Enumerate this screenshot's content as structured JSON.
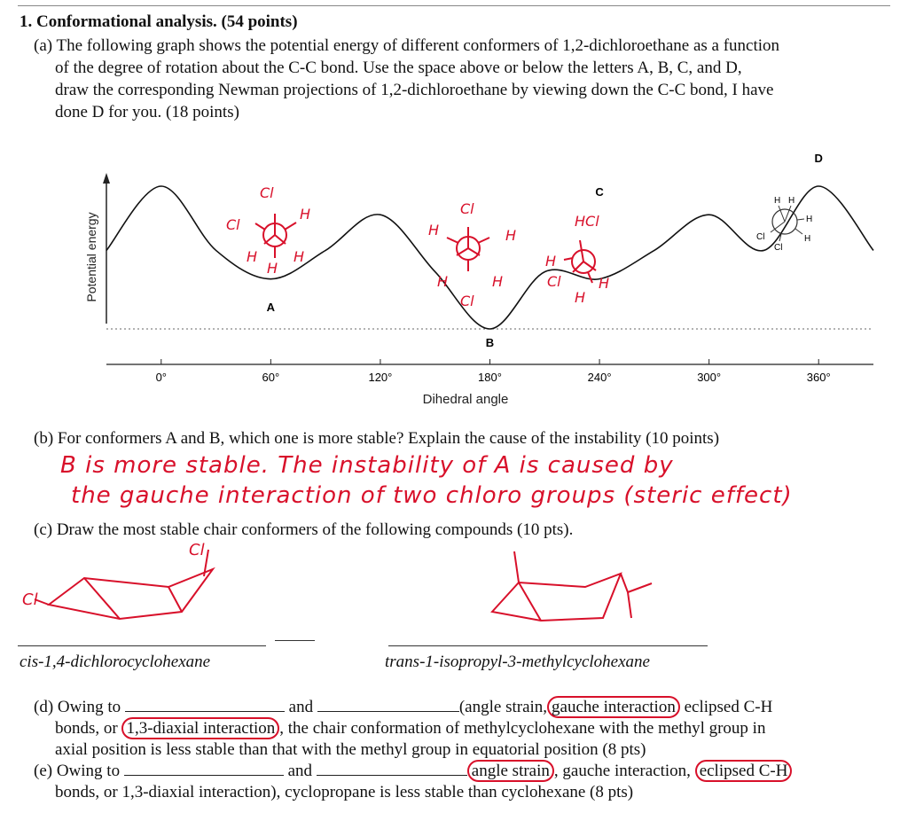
{
  "q1": {
    "title": "1. Conformational analysis. (54 points)",
    "a_lines": [
      "(a) The following graph shows the potential energy of different conformers of 1,2-dichloroethane as a function",
      "of the degree of rotation about the C-C bond. Use the space above or below the letters A, B, C, and D,",
      "draw the corresponding Newman projections of 1,2-dichloroethane by viewing down the C-C bond, I have",
      "done D for you. (18 points)"
    ],
    "b_question": "(b) For conformers A and B, which one is more stable? Explain the cause of the instability (10 points)",
    "b_answer_line1": "B is more stable.  The instability of A is caused by",
    "b_answer_line2": "the gauche interaction of two chloro groups (steric effect)",
    "c_question": "(c) Draw the most stable chair conformers of the following compounds (10 pts).",
    "c_label_left": "cis-1,4-dichlorocyclohexane",
    "c_label_right": "trans-1-isopropyl-3-methylcyclohexane",
    "c_hand_cl_top": "Cl",
    "c_hand_cl_left": "Cl",
    "d_prefix": "(d) Owing to",
    "d_and": "and",
    "d_options_open": "(angle strain,",
    "d_opt_gauche": "gauche interaction",
    "d_opt_eclipsed": " eclipsed C-H",
    "d_line2_pre": "bonds, or",
    "d_opt_diaxial": "1,3-diaxial interaction",
    "d_line2_post": ", the chair conformation of methylcyclohexane with the methyl group in",
    "d_line3": "axial position is less stable than that with the methyl group in equatorial position (8 pts)",
    "e_prefix": "(e) Owing to",
    "e_and": "and",
    "e_opt_angle": "angle strain",
    "e_mid": ", gauche interaction, ",
    "e_opt_eclipsed": "eclipsed C-H",
    "e_line2": "bonds, or 1,3-diaxial interaction), cyclopropane is less stable than cyclohexane (8 pts)"
  },
  "chart_data": {
    "type": "line",
    "xlabel": "Dihedral angle",
    "ylabel": "Potential energy",
    "x_ticks": [
      "0°",
      "60°",
      "120°",
      "180°",
      "240°",
      "300°",
      "360°"
    ],
    "x_tick_values": [
      0,
      60,
      120,
      180,
      240,
      300,
      360
    ],
    "xlim": [
      -30,
      390
    ],
    "curve_note": "relative energy vs dihedral angle (qualitative)",
    "curve": {
      "x": [
        -30,
        0,
        30,
        60,
        90,
        120,
        150,
        180,
        210,
        240,
        270,
        300,
        330,
        360,
        390
      ],
      "y": [
        0.55,
        1.0,
        0.55,
        0.35,
        0.55,
        0.8,
        0.4,
        0.0,
        0.4,
        0.35,
        0.55,
        0.8,
        0.55,
        1.0,
        0.55
      ]
    },
    "point_labels": [
      {
        "label": "A",
        "x": 60
      },
      {
        "label": "B",
        "x": 180
      },
      {
        "label": "C",
        "x": 240
      },
      {
        "label": "D",
        "x": 360
      }
    ],
    "d_projection": {
      "front": [
        "H",
        "H",
        "Cl"
      ],
      "back": [
        "H",
        "H",
        "Cl"
      ]
    },
    "hand_newman": {
      "A": {
        "top": "Cl",
        "left": "Cl",
        "right": "H",
        "bl": "H",
        "br": "H",
        "bottom": "H"
      },
      "B": {
        "top": "Cl",
        "left": "H",
        "right": "H",
        "bl": "H",
        "br": "H",
        "bottom": "Cl"
      },
      "C": {
        "top": "HCl",
        "left": "H",
        "bl": "Cl",
        "br": "H",
        "bottom": "H"
      }
    }
  }
}
